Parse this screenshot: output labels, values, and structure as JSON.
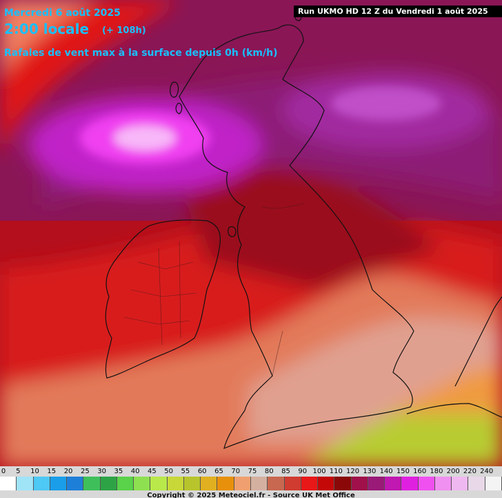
{
  "header": {
    "date": "Mercredi 6 août 2025",
    "time": "2:00 locale",
    "lead": "(+ 108h)",
    "description": "Rafales de vent max à la surface depuis 0h (km/h)",
    "run": "Run UKMO HD 12 Z du Vendredi 1 août 2025"
  },
  "legend": {
    "labels": [
      "0",
      "5",
      "10",
      "15",
      "20",
      "25",
      "30",
      "35",
      "40",
      "45",
      "50",
      "55",
      "60",
      "65",
      "70",
      "75",
      "80",
      "85",
      "90",
      "100",
      "110",
      "120",
      "130",
      "140",
      "150",
      "160",
      "180",
      "200",
      "220",
      "240"
    ],
    "colors": [
      "#ffffff",
      "#a0e4f8",
      "#4ec8f4",
      "#1a9eea",
      "#1e7fd8",
      "#3fbf5a",
      "#2ea346",
      "#5ad24a",
      "#8ee050",
      "#b8e84a",
      "#c8d838",
      "#b8c42c",
      "#e0b020",
      "#e8900c",
      "#f0a070",
      "#d4b0a0",
      "#c86850",
      "#d03c30",
      "#e81818",
      "#c40808",
      "#8a0808",
      "#a0104a",
      "#9a1a78",
      "#c018b0",
      "#e020e0",
      "#f050f0",
      "#f090f0",
      "#f0b8f0",
      "#e8d8e8",
      "#f4f4f4"
    ],
    "copyright": "Copyright © 2025 Meteociel.fr - Source UK Met Office"
  },
  "map": {
    "region": "British Isles",
    "colors": {
      "magenta_core": "#f060f8",
      "purple": "#8a1a6a",
      "dark_red": "#9a0e1e",
      "red": "#d81818",
      "salmon": "#e88a6a",
      "yellow_green": "#b8d838"
    }
  }
}
